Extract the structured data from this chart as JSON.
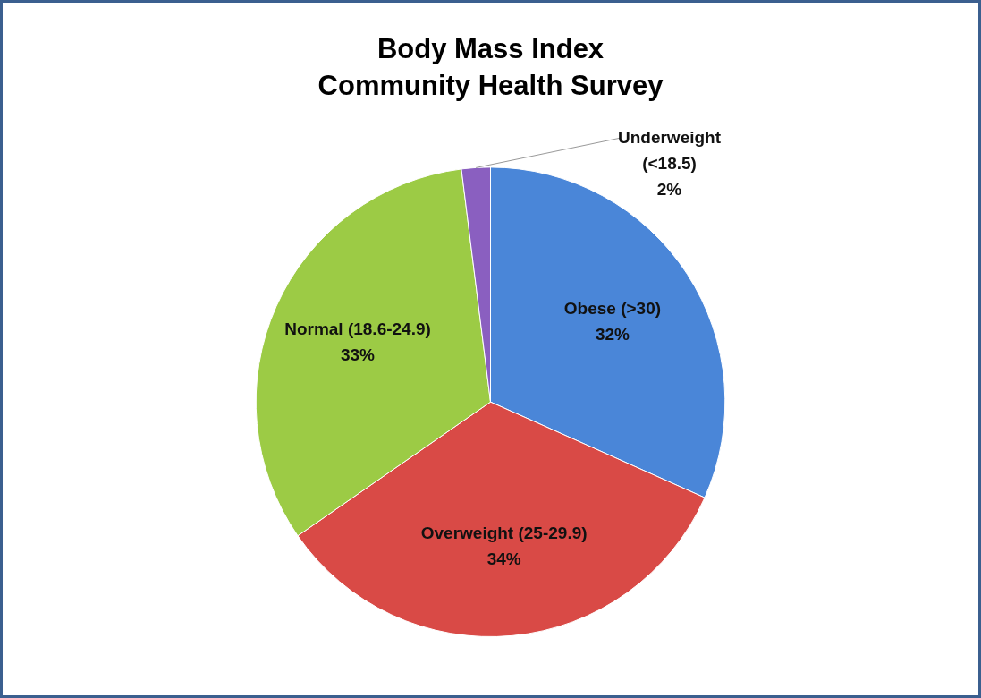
{
  "chart_data": {
    "type": "pie",
    "title": "Body Mass Index",
    "subtitle": "Community Health Survey",
    "categories": [
      "Obese (>30)",
      "Overweight (25-29.9)",
      "Normal (18.6-24.9)",
      "Underweight (<18.5)"
    ],
    "values": [
      32,
      34,
      33,
      2
    ],
    "value_labels": [
      "32%",
      "34%",
      "33%",
      "2%"
    ],
    "colors": [
      "#4a86d8",
      "#d94a46",
      "#9ccb45",
      "#8a5fc0"
    ],
    "legend": false
  }
}
